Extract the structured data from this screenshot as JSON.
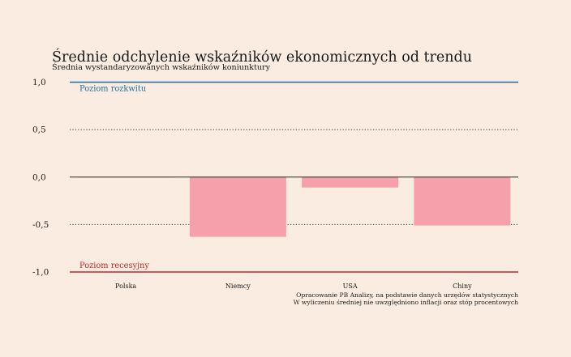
{
  "header": {
    "title": "Średnie odchylenie wskaźników ekonomicznych od trendu",
    "subtitle": "Średnia wystandaryzowanych wskaźników koniunktury"
  },
  "footer": {
    "source_line1": "Opracowanie PB Analizy, na podstawie danych urzędów statystycznych",
    "source_line2": "W wyliczeniu średniej nie uwzględniono inflacji oraz stóp procentowych"
  },
  "chart_data": {
    "type": "bar",
    "title": "Średnie odchylenie wskaźników ekonomicznych od trendu",
    "subtitle": "Średnia wystandaryzowanych wskaźników koniunktury",
    "categories": [
      "Polska",
      "Niemcy",
      "USA",
      "Chiny"
    ],
    "values": [
      0.0,
      -0.63,
      -0.11,
      -0.51
    ],
    "ylim": [
      -1.0,
      1.0
    ],
    "yticks": [
      1.0,
      0.5,
      0.0,
      -0.5,
      -1.0
    ],
    "ytick_labels": [
      "1,0",
      "0,5",
      "0,0",
      "-0,5",
      "-1,0"
    ],
    "grid": "dotted horizontal at ±0.5",
    "reference_lines": [
      {
        "value": 1.0,
        "label": "Poziom rozkwitu",
        "color": "#1f6f9f"
      },
      {
        "value": -1.0,
        "label": "Poziom recesyjny",
        "color": "#c0282b"
      }
    ],
    "bar_color": "#f5a0ab"
  }
}
